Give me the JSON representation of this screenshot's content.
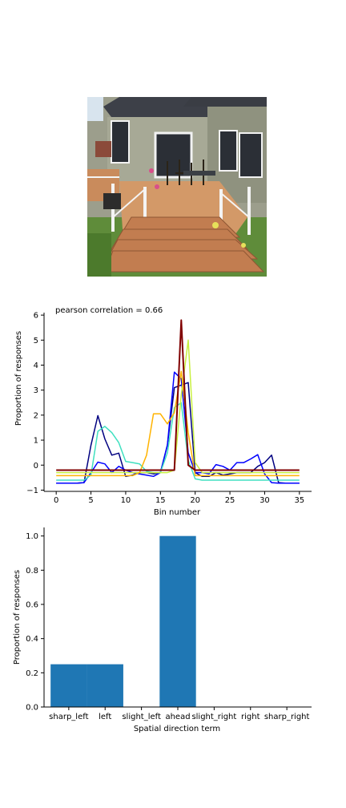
{
  "photo": {
    "subject": "wooden-deck-with-stairs-photo"
  },
  "chart_data": [
    {
      "type": "line",
      "title": "pearson correlation = 0.66",
      "xlabel": "Bin number",
      "ylabel": "Proportion of responses",
      "xlim": [
        -1.75,
        36.75
      ],
      "ylim": [
        -1.05,
        6.1
      ],
      "xticks": [
        0,
        5,
        10,
        15,
        20,
        25,
        30,
        35
      ],
      "yticks": [
        -1,
        0,
        1,
        2,
        3,
        4,
        5,
        6
      ],
      "grid": false,
      "legend": "none",
      "series": [
        {
          "color": "#000080",
          "values": [
            -0.72,
            -0.72,
            -0.72,
            -0.72,
            -0.7,
            0.8,
            1.98,
            1.05,
            0.4,
            0.48,
            -0.45,
            -0.4,
            -0.3,
            -0.3,
            -0.35,
            -0.3,
            0.8,
            3.1,
            3.2,
            3.3,
            -0.3,
            -0.45,
            -0.45,
            -0.3,
            -0.4,
            -0.35,
            -0.3,
            -0.3,
            -0.3,
            -0.05,
            0.1,
            0.4,
            -0.7,
            -0.72,
            -0.72,
            -0.72
          ]
        },
        {
          "color": "#0000ff",
          "values": [
            -0.72,
            -0.72,
            -0.72,
            -0.72,
            -0.7,
            -0.3,
            0.12,
            0.05,
            -0.3,
            -0.05,
            -0.2,
            -0.3,
            -0.35,
            -0.4,
            -0.45,
            -0.3,
            0.8,
            3.72,
            3.45,
            0.5,
            -0.3,
            -0.3,
            -0.35,
            0.02,
            -0.05,
            -0.2,
            0.1,
            0.1,
            0.25,
            0.42,
            -0.35,
            -0.7,
            -0.72,
            -0.72,
            -0.72,
            -0.72
          ]
        },
        {
          "color": "#40e0c0",
          "values": [
            -0.6,
            -0.6,
            -0.6,
            -0.6,
            -0.6,
            -0.4,
            1.35,
            1.55,
            1.3,
            0.9,
            0.15,
            0.1,
            0.05,
            -0.25,
            -0.3,
            -0.3,
            0.5,
            2.3,
            2.5,
            0.2,
            -0.55,
            -0.6,
            -0.6,
            -0.6,
            -0.6,
            -0.6,
            -0.6,
            -0.6,
            -0.6,
            -0.6,
            -0.6,
            -0.6,
            -0.6,
            -0.6,
            -0.6,
            -0.6
          ]
        },
        {
          "color": "#c8f040",
          "values": [
            -0.3,
            -0.3,
            -0.3,
            -0.3,
            -0.3,
            -0.3,
            -0.3,
            -0.3,
            -0.3,
            -0.3,
            -0.3,
            -0.3,
            -0.3,
            -0.3,
            -0.3,
            -0.3,
            -0.3,
            -0.2,
            2.8,
            5.0,
            0.1,
            -0.3,
            -0.3,
            -0.3,
            -0.3,
            -0.3,
            -0.3,
            -0.3,
            -0.3,
            -0.3,
            -0.3,
            -0.3,
            -0.3,
            -0.3,
            -0.3,
            -0.3
          ]
        },
        {
          "color": "#ffb300",
          "values": [
            -0.42,
            -0.42,
            -0.42,
            -0.42,
            -0.42,
            -0.42,
            -0.42,
            -0.42,
            -0.42,
            -0.42,
            -0.42,
            -0.42,
            -0.3,
            0.4,
            2.05,
            2.05,
            1.65,
            2.1,
            3.75,
            1.3,
            -0.42,
            -0.42,
            -0.42,
            -0.42,
            -0.42,
            -0.42,
            -0.42,
            -0.42,
            -0.42,
            -0.42,
            -0.42,
            -0.42,
            -0.42,
            -0.42,
            -0.42,
            -0.42
          ]
        },
        {
          "color": "#800000",
          "values": [
            -0.2,
            -0.2,
            -0.2,
            -0.2,
            -0.2,
            -0.2,
            -0.2,
            -0.2,
            -0.2,
            -0.2,
            -0.2,
            -0.2,
            -0.2,
            -0.2,
            -0.2,
            -0.2,
            -0.2,
            -0.2,
            5.8,
            0.0,
            -0.2,
            -0.2,
            -0.2,
            -0.2,
            -0.2,
            -0.2,
            -0.2,
            -0.2,
            -0.2,
            -0.2,
            -0.2,
            -0.2,
            -0.2,
            -0.2,
            -0.2,
            -0.2
          ]
        }
      ]
    },
    {
      "type": "bar",
      "xlabel": "Spatial direction term",
      "ylabel": "Proportion of responses",
      "categories": [
        "sharp_left",
        "left",
        "slight_left",
        "ahead",
        "slight_right",
        "right",
        "sharp_right"
      ],
      "values": [
        0.25,
        0.25,
        0.0,
        1.0,
        0.0,
        0.0,
        0.0
      ],
      "ylim": [
        0,
        1.05
      ],
      "yticks": [
        "0.0",
        "0.2",
        "0.4",
        "0.6",
        "0.8",
        "1.0"
      ],
      "bar_color": "#1f77b4",
      "grid": false,
      "legend": "none"
    }
  ]
}
